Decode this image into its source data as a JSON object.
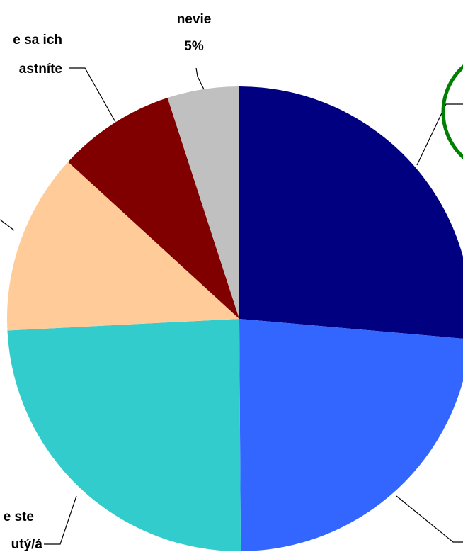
{
  "chart_data": {
    "type": "pie",
    "slices": [
      {
        "label": "",
        "value": 26.4,
        "color": "#000080"
      },
      {
        "label": "",
        "value": 23.5,
        "color": "#3366FF"
      },
      {
        "label": "",
        "value": 24.3,
        "color": "#33CCCC"
      },
      {
        "label": "",
        "value": 12.6,
        "color": "#FFCC99"
      },
      {
        "label": "",
        "value": 8.2,
        "color": "#800000"
      },
      {
        "label": "nevie",
        "value": 5.0,
        "value_label": "5%",
        "color": "#C0C0C0"
      }
    ],
    "partial_labels": [
      {
        "lines": [
          "e sa ich",
          "astníte"
        ]
      },
      {
        "lines": [
          "e ste",
          "utý/á"
        ]
      }
    ],
    "highlight_circle_color": "#008000"
  }
}
